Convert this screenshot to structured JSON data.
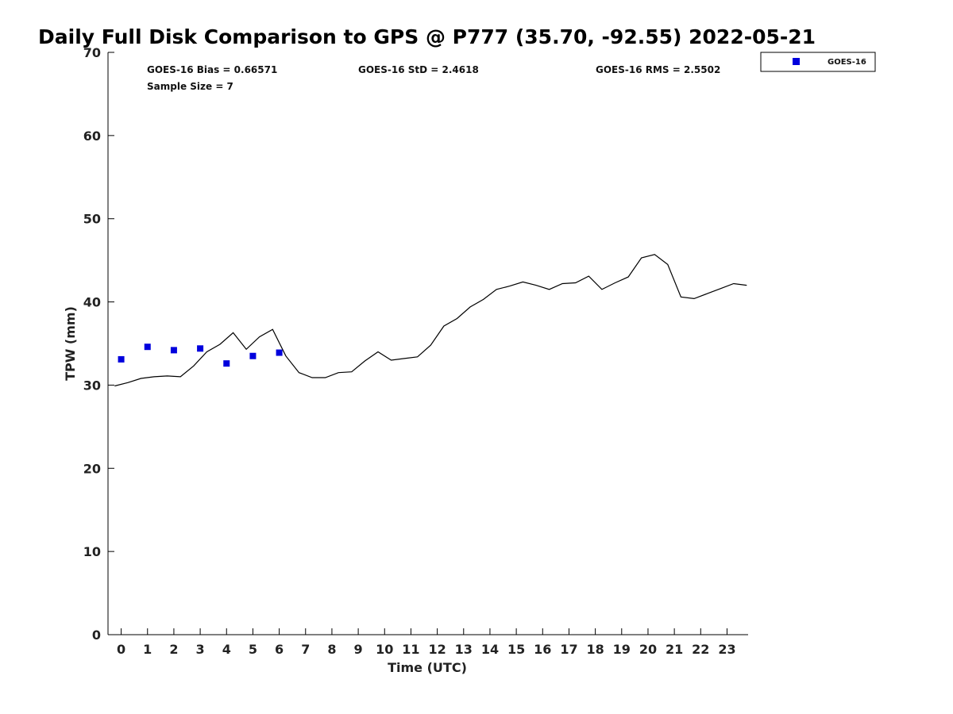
{
  "chart_data": {
    "type": "line",
    "title": "Daily Full Disk Comparison to GPS @ P777 (35.70, -92.55) 2022-05-21",
    "xlabel": "Time (UTC)",
    "ylabel": "TPW (mm)",
    "xlim": [
      -0.5,
      23.8
    ],
    "ylim": [
      0,
      70
    ],
    "xticks": [
      0,
      1,
      2,
      3,
      4,
      5,
      6,
      7,
      8,
      9,
      10,
      11,
      12,
      13,
      14,
      15,
      16,
      17,
      18,
      19,
      20,
      21,
      22,
      23
    ],
    "yticks": [
      0,
      10,
      20,
      30,
      40,
      50,
      60,
      70
    ],
    "grid": false,
    "legend_position": "top-right",
    "stats": {
      "bias": "GOES-16 Bias = 0.66571",
      "std": "GOES-16 StD = 2.4618",
      "rms": "GOES-16 RMS = 2.5502",
      "sample_size": "Sample Size = 7"
    },
    "series": [
      {
        "kind": "line",
        "color": "#000000",
        "x": [
          -0.25,
          0.25,
          0.75,
          1.25,
          1.75,
          2.25,
          2.75,
          3.25,
          3.75,
          4.25,
          4.75,
          5.25,
          5.75,
          6.25,
          6.75,
          7.25,
          7.75,
          8.25,
          8.75,
          9.25,
          9.75,
          10.25,
          10.75,
          11.25,
          11.75,
          12.25,
          12.75,
          13.25,
          13.75,
          14.25,
          14.75,
          15.25,
          15.75,
          16.25,
          16.75,
          17.25,
          17.75,
          18.25,
          18.75,
          19.25,
          19.75,
          20.25,
          20.75,
          21.25,
          21.75,
          22.25,
          22.75,
          23.25,
          23.75
        ],
        "y": [
          29.9,
          30.3,
          30.8,
          31.0,
          31.1,
          31.0,
          32.3,
          34.0,
          34.9,
          36.3,
          34.3,
          35.8,
          36.7,
          33.5,
          31.5,
          30.9,
          30.9,
          31.5,
          31.6,
          32.9,
          34.0,
          33.0,
          33.2,
          33.4,
          34.8,
          37.1,
          38.0,
          39.4,
          40.3,
          41.5,
          41.9,
          42.4,
          42.0,
          41.5,
          42.2,
          42.3,
          43.1,
          41.5,
          42.3,
          43.0,
          45.3,
          45.7,
          44.5,
          40.6,
          40.4,
          41.0,
          41.6,
          42.2,
          42.0
        ]
      },
      {
        "name": "GOES-16",
        "kind": "scatter",
        "color": "#0000dd",
        "x": [
          0,
          1,
          2,
          3,
          4,
          5,
          6
        ],
        "y": [
          33.1,
          34.6,
          34.2,
          34.4,
          32.6,
          33.5,
          33.9
        ]
      }
    ]
  }
}
